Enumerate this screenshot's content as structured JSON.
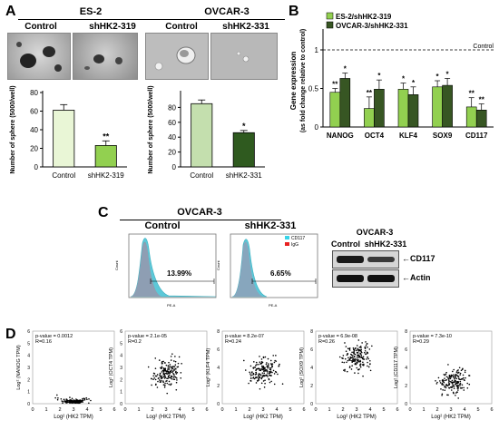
{
  "panels": {
    "a": "A",
    "b": "B",
    "c": "C",
    "d": "D"
  },
  "panel_a": {
    "es2_header": "ES-2",
    "ovcar_header": "OVCAR-3",
    "es2_sub": [
      "Control",
      "shHK2-319"
    ],
    "ovcar_sub": [
      "Control",
      "shHK2-331"
    ]
  },
  "panel_c": {
    "header": "OVCAR-3",
    "sub": [
      "Control",
      "shHK2-331"
    ],
    "legend": [
      "CD117",
      "IgG"
    ],
    "pct": [
      "13.99%",
      "6.65%"
    ],
    "axis_x": "PE-A",
    "axis_y": "Count",
    "wb_header": "OVCAR-3",
    "wb_cols": [
      "Control",
      "shHK2-331"
    ],
    "wb_bands": [
      "CD117",
      "Actin"
    ]
  },
  "chart_data": [
    {
      "type": "bar",
      "categories": [
        "Control",
        "shHK2-319"
      ],
      "values": [
        61,
        23
      ],
      "errors": [
        6,
        5
      ],
      "ylabel": "Number of sphere (5000/well)",
      "ylim": [
        0,
        80
      ],
      "yticks": [
        0,
        20,
        40,
        60,
        80
      ],
      "significance": [
        "",
        "**"
      ],
      "colors": [
        "#e9f6d6",
        "#92d050"
      ]
    },
    {
      "type": "bar",
      "categories": [
        "Control",
        "shHK2-331"
      ],
      "values": [
        85,
        46
      ],
      "errors": [
        5,
        3
      ],
      "ylabel": "Number of sphere (5000/well)",
      "ylim": [
        0,
        100
      ],
      "yticks": [
        0,
        20,
        40,
        60,
        80
      ],
      "significance": [
        "",
        "*"
      ],
      "colors": [
        "#c4dfae",
        "#2f5a1f"
      ]
    },
    {
      "type": "bar",
      "categories": [
        "NANOG",
        "OCT4",
        "KLF4",
        "SOX9",
        "CD117"
      ],
      "series": [
        {
          "name": "ES-2/shHK2-319",
          "values": [
            0.45,
            0.24,
            0.49,
            0.52,
            0.26
          ],
          "errors": [
            0.05,
            0.15,
            0.08,
            0.08,
            0.12
          ],
          "sig": [
            "**",
            "**",
            "*",
            "*",
            "**"
          ],
          "color": "#92d050"
        },
        {
          "name": "OVCAR-3/shHK2-331",
          "values": [
            0.63,
            0.49,
            0.42,
            0.54,
            0.22
          ],
          "errors": [
            0.07,
            0.12,
            0.1,
            0.09,
            0.08
          ],
          "sig": [
            "*",
            "*",
            "*",
            "*",
            "**"
          ],
          "color": "#375623"
        }
      ],
      "ylabel": "Gene expression",
      "ylabel2": "(as fold change relative to control)",
      "ylim": [
        0,
        1.2
      ],
      "yticks": [
        "0",
        "0.5",
        "1"
      ],
      "reference": {
        "value": 1,
        "label": "Control"
      }
    },
    {
      "type": "scatter",
      "panels": [
        {
          "pvalue": "p-value = 0.0012",
          "r": "R=0.16",
          "ylabel": "Log² (NANOG TPM)",
          "xlabel": "Log² (HK2 TPM)",
          "xticks": [
            "0",
            "1",
            "2",
            "3",
            "4",
            "5",
            "6"
          ],
          "yticks": [
            "0",
            "1",
            "2",
            "3",
            "4",
            "5",
            "6"
          ],
          "ylim": [
            0,
            6
          ],
          "xlim": [
            0,
            6
          ]
        },
        {
          "pvalue": "p-value = 2.1e-05",
          "r": "R=0.2",
          "ylabel": "Log² (OCT4 TPM)",
          "xlabel": "Log² (HK2 TPM)",
          "xticks": [
            "0",
            "1",
            "2",
            "3",
            "4",
            "5",
            "6"
          ],
          "yticks": [
            "0",
            "1",
            "2",
            "3",
            "4",
            "5",
            "6"
          ],
          "ylim": [
            0,
            6
          ],
          "xlim": [
            0,
            6
          ]
        },
        {
          "pvalue": "p-value = 8.2e-07",
          "r": "R=0.24",
          "ylabel": "Log² (KLF4 TPM)",
          "xlabel": "Log² (HK2 TPM)",
          "xticks": [
            "0",
            "1",
            "2",
            "3",
            "4",
            "5",
            "6"
          ],
          "yticks": [
            "0",
            "2",
            "4",
            "6",
            "8"
          ],
          "ylim": [
            0,
            8
          ],
          "xlim": [
            0,
            6
          ]
        },
        {
          "pvalue": "p-value = 6.9e-08",
          "r": "R=0.26",
          "ylabel": "Log² (SOX9 TPM)",
          "xlabel": "Log² (HK2 TPM)",
          "xticks": [
            "0",
            "1",
            "2",
            "3",
            "4",
            "5",
            "6"
          ],
          "yticks": [
            "0",
            "2",
            "4",
            "6",
            "8"
          ],
          "ylim": [
            0,
            8
          ],
          "xlim": [
            0,
            6
          ]
        },
        {
          "pvalue": "p-value = 7.3e-10",
          "r": "R=0.29",
          "ylabel": "Log² (CD117 TPM)",
          "xlabel": "Log² (HK2 TPM)",
          "xticks": [
            "0",
            "1",
            "2",
            "3",
            "4",
            "5",
            "6"
          ],
          "yticks": [
            "0",
            "2",
            "4",
            "6",
            "8"
          ],
          "ylim": [
            0,
            8
          ],
          "xlim": [
            0,
            6
          ]
        }
      ]
    }
  ]
}
